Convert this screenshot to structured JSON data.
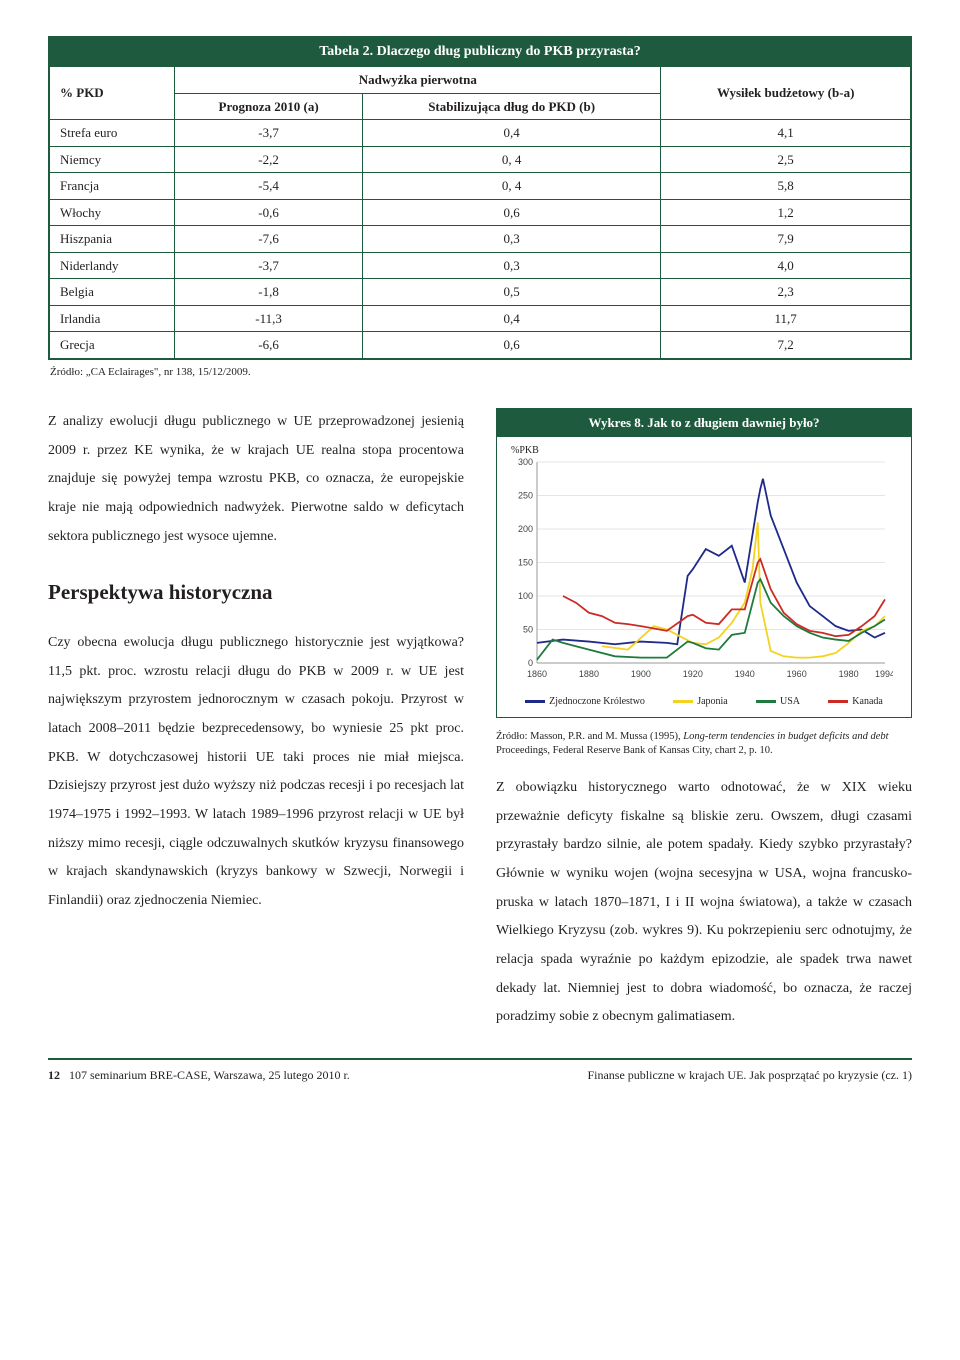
{
  "table": {
    "title": "Tabela 2. Dlaczego dług publiczny do PKB przyrasta?",
    "h_pkd": "% PKD",
    "h_nadw": "Nadwyżka pierwotna",
    "h_prog": "Prognoza 2010 (a)",
    "h_stab": "Stabilizująca dług do PKD (b)",
    "h_wys": "Wysiłek budżetowy (b-a)",
    "rows": [
      {
        "c": "Strefa euro",
        "a": "-3,7",
        "b": "0,4",
        "d": "4,1"
      },
      {
        "c": "Niemcy",
        "a": "-2,2",
        "b": "0, 4",
        "d": "2,5"
      },
      {
        "c": "Francja",
        "a": "-5,4",
        "b": "0, 4",
        "d": "5,8"
      },
      {
        "c": "Włochy",
        "a": "-0,6",
        "b": "0,6",
        "d": "1,2"
      },
      {
        "c": "Hiszpania",
        "a": "-7,6",
        "b": "0,3",
        "d": "7,9"
      },
      {
        "c": "Niderlandy",
        "a": "-3,7",
        "b": "0,3",
        "d": "4,0"
      },
      {
        "c": "Belgia",
        "a": "-1,8",
        "b": "0,5",
        "d": "2,3"
      },
      {
        "c": "Irlandia",
        "a": "-11,3",
        "b": "0,4",
        "d": "11,7"
      },
      {
        "c": "Grecja",
        "a": "-6,6",
        "b": "0,6",
        "d": "7,2"
      }
    ],
    "source": "Źródło: „CA Eclairages\", nr 138, 15/12/2009."
  },
  "para1": "Z analizy ewolucji długu publicznego w UE przeprowadzonej jesienią 2009 r. przez KE wynika, że w krajach UE realna stopa procentowa znajduje się powyżej tempa wzrostu PKB, co oznacza, że europejskie kraje nie mają odpowiednich nadwyżek. Pierwotne saldo w deficytach sektora publicznego jest wysoce ujemne.",
  "h_persp": "Perspektywa historyczna",
  "para2": "Czy obecna ewolucja długu publicznego historycznie jest wyjątkowa? 11,5 pkt. proc. wzrostu relacji długu do PKB w 2009 r. w UE jest największym przyrostem jednorocznym w czasach pokoju. Przyrost w latach 2008–2011 będzie bezprecedensowy, bo wyniesie 25 pkt proc. PKB. W dotychczasowej historii UE taki proces nie miał miejsca. Dzisiejszy przyrost jest dużo wyższy niż podczas recesji i po recesjach lat 1974–1975 i 1992–1993. W latach 1989–1996 przyrost relacji w UE był niższy mimo recesji, ciągle odczuwalnych skutków kryzysu finansowego w krajach skandynawskich (kryzys bankowy w Szwecji, Norwegii i Finlandii) oraz zjednoczenia Niemiec.",
  "para3": "Z obowiązku historycznego warto odnotować, że w XIX wieku przeważnie deficyty fiskalne są bliskie zeru. Owszem, długi czasami przyrastały bardzo silnie, ale potem spadały. Kiedy szybko przyrastały? Głównie w wyniku wojen (wojna secesyjna w USA, wojna francusko-pruska w latach 1870–1871, I i II wojna światowa), a także w czasach Wielkiego Kryzysu (zob. wykres 9). Ku pokrzepieniu serc odnotujmy, że relacja spada wyraźnie po każdym epizodzie, ale spadek trwa nawet dekady lat. Niemniej jest to dobra wiadomość, bo oznacza, że raczej poradzimy sobie z obecnym galimatiasem.",
  "chart": {
    "title": "Wykres 8. Jak to z długiem dawniej było?",
    "ylabel": "%PKB",
    "ylim": [
      0,
      300
    ],
    "ytick_step": 50,
    "xticks": [
      1860,
      1880,
      1900,
      1920,
      1940,
      1960,
      1980,
      1994
    ],
    "grid_color": "#e5e5e5",
    "bg": "#ffffff",
    "legend": [
      {
        "name": "Zjednoczone Królestwo",
        "color": "#1e2a8a"
      },
      {
        "name": "Japonia",
        "color": "#f4d21f"
      },
      {
        "name": "USA",
        "color": "#1e7a3d"
      },
      {
        "name": "Kanada",
        "color": "#cc2b24"
      }
    ],
    "series": {
      "uk": {
        "color": "#1e2a8a",
        "points": [
          [
            1860,
            30
          ],
          [
            1870,
            35
          ],
          [
            1880,
            32
          ],
          [
            1890,
            28
          ],
          [
            1900,
            32
          ],
          [
            1910,
            30
          ],
          [
            1914,
            28
          ],
          [
            1918,
            130
          ],
          [
            1920,
            140
          ],
          [
            1925,
            170
          ],
          [
            1930,
            160
          ],
          [
            1935,
            175
          ],
          [
            1940,
            120
          ],
          [
            1945,
            240
          ],
          [
            1946,
            260
          ],
          [
            1947,
            275
          ],
          [
            1950,
            220
          ],
          [
            1955,
            170
          ],
          [
            1960,
            120
          ],
          [
            1965,
            85
          ],
          [
            1970,
            70
          ],
          [
            1975,
            55
          ],
          [
            1980,
            48
          ],
          [
            1985,
            50
          ],
          [
            1990,
            38
          ],
          [
            1994,
            45
          ]
        ]
      },
      "jp": {
        "color": "#f4d21f",
        "points": [
          [
            1885,
            25
          ],
          [
            1895,
            20
          ],
          [
            1905,
            55
          ],
          [
            1910,
            50
          ],
          [
            1920,
            30
          ],
          [
            1925,
            28
          ],
          [
            1930,
            38
          ],
          [
            1935,
            60
          ],
          [
            1940,
            90
          ],
          [
            1943,
            140
          ],
          [
            1945,
            210
          ],
          [
            1946,
            90
          ],
          [
            1950,
            18
          ],
          [
            1955,
            10
          ],
          [
            1960,
            8
          ],
          [
            1965,
            8
          ],
          [
            1970,
            10
          ],
          [
            1975,
            15
          ],
          [
            1980,
            30
          ],
          [
            1985,
            48
          ],
          [
            1990,
            55
          ],
          [
            1994,
            70
          ]
        ]
      },
      "us": {
        "color": "#1e7a3d",
        "points": [
          [
            1860,
            5
          ],
          [
            1866,
            35
          ],
          [
            1870,
            30
          ],
          [
            1880,
            20
          ],
          [
            1890,
            10
          ],
          [
            1900,
            8
          ],
          [
            1910,
            8
          ],
          [
            1918,
            32
          ],
          [
            1920,
            30
          ],
          [
            1925,
            22
          ],
          [
            1930,
            20
          ],
          [
            1935,
            42
          ],
          [
            1940,
            45
          ],
          [
            1945,
            120
          ],
          [
            1946,
            125
          ],
          [
            1950,
            90
          ],
          [
            1955,
            70
          ],
          [
            1960,
            55
          ],
          [
            1965,
            45
          ],
          [
            1970,
            38
          ],
          [
            1975,
            35
          ],
          [
            1980,
            33
          ],
          [
            1985,
            45
          ],
          [
            1990,
            55
          ],
          [
            1994,
            65
          ]
        ]
      },
      "ca": {
        "color": "#cc2b24",
        "points": [
          [
            1870,
            100
          ],
          [
            1875,
            90
          ],
          [
            1880,
            75
          ],
          [
            1885,
            70
          ],
          [
            1890,
            60
          ],
          [
            1895,
            58
          ],
          [
            1900,
            55
          ],
          [
            1910,
            48
          ],
          [
            1918,
            70
          ],
          [
            1920,
            72
          ],
          [
            1925,
            60
          ],
          [
            1930,
            58
          ],
          [
            1935,
            80
          ],
          [
            1940,
            80
          ],
          [
            1945,
            150
          ],
          [
            1946,
            155
          ],
          [
            1950,
            110
          ],
          [
            1955,
            75
          ],
          [
            1960,
            58
          ],
          [
            1965,
            48
          ],
          [
            1970,
            45
          ],
          [
            1975,
            40
          ],
          [
            1980,
            42
          ],
          [
            1985,
            55
          ],
          [
            1990,
            70
          ],
          [
            1994,
            95
          ]
        ]
      }
    },
    "source_html": "Źródło: Masson, P.R. and M. Mussa (1995), <i>Long-term tendencies in budget deficits and debt</i> Proceedings, Federal Reserve Bank of Kansas City, chart 2, p. 10."
  },
  "footer": {
    "left": "107 seminarium BRE-CASE, Warszawa, 25 lutego 2010 r.",
    "right": "Finanse publiczne w krajach UE. Jak posprzątać po kryzysie (cz. 1)",
    "page": "12"
  }
}
